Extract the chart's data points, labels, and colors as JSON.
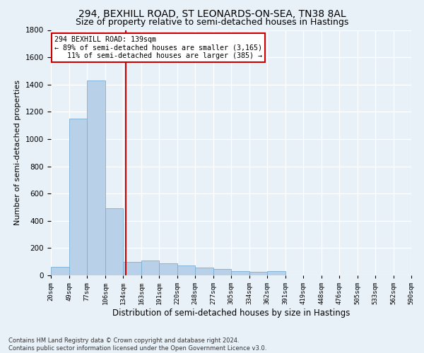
{
  "title1": "294, BEXHILL ROAD, ST LEONARDS-ON-SEA, TN38 8AL",
  "title2": "Size of property relative to semi-detached houses in Hastings",
  "xlabel": "Distribution of semi-detached houses by size in Hastings",
  "ylabel": "Number of semi-detached properties",
  "bin_edges": [
    20,
    49,
    77,
    106,
    134,
    163,
    191,
    220,
    248,
    277,
    305,
    334,
    362,
    391,
    419,
    448,
    476,
    505,
    533,
    562,
    590
  ],
  "bar_heights": [
    60,
    1150,
    1430,
    490,
    100,
    110,
    90,
    70,
    55,
    45,
    30,
    25,
    30,
    2,
    2,
    2,
    2,
    2,
    2,
    2
  ],
  "bar_color": "#b8d0e8",
  "bar_edgecolor": "#7aafd4",
  "vline_x": 139,
  "vline_color": "#cc0000",
  "ylim": [
    0,
    1800
  ],
  "yticks": [
    0,
    200,
    400,
    600,
    800,
    1000,
    1200,
    1400,
    1600,
    1800
  ],
  "xtick_labels": [
    "20sqm",
    "49sqm",
    "77sqm",
    "106sqm",
    "134sqm",
    "163sqm",
    "191sqm",
    "220sqm",
    "248sqm",
    "277sqm",
    "305sqm",
    "334sqm",
    "362sqm",
    "391sqm",
    "419sqm",
    "448sqm",
    "476sqm",
    "505sqm",
    "533sqm",
    "562sqm",
    "590sqm"
  ],
  "annotation_text": "294 BEXHILL ROAD: 139sqm\n← 89% of semi-detached houses are smaller (3,165)\n   11% of semi-detached houses are larger (385) →",
  "annotation_box_color": "#ffffff",
  "annotation_box_edgecolor": "#cc0000",
  "footer_text": "Contains HM Land Registry data © Crown copyright and database right 2024.\nContains public sector information licensed under the Open Government Licence v3.0.",
  "bg_color": "#e8f0f8",
  "plot_bg_color": "#e8f0f8",
  "grid_color": "#ffffff",
  "title1_fontsize": 10,
  "title2_fontsize": 9,
  "xlabel_fontsize": 8.5,
  "ylabel_fontsize": 8
}
